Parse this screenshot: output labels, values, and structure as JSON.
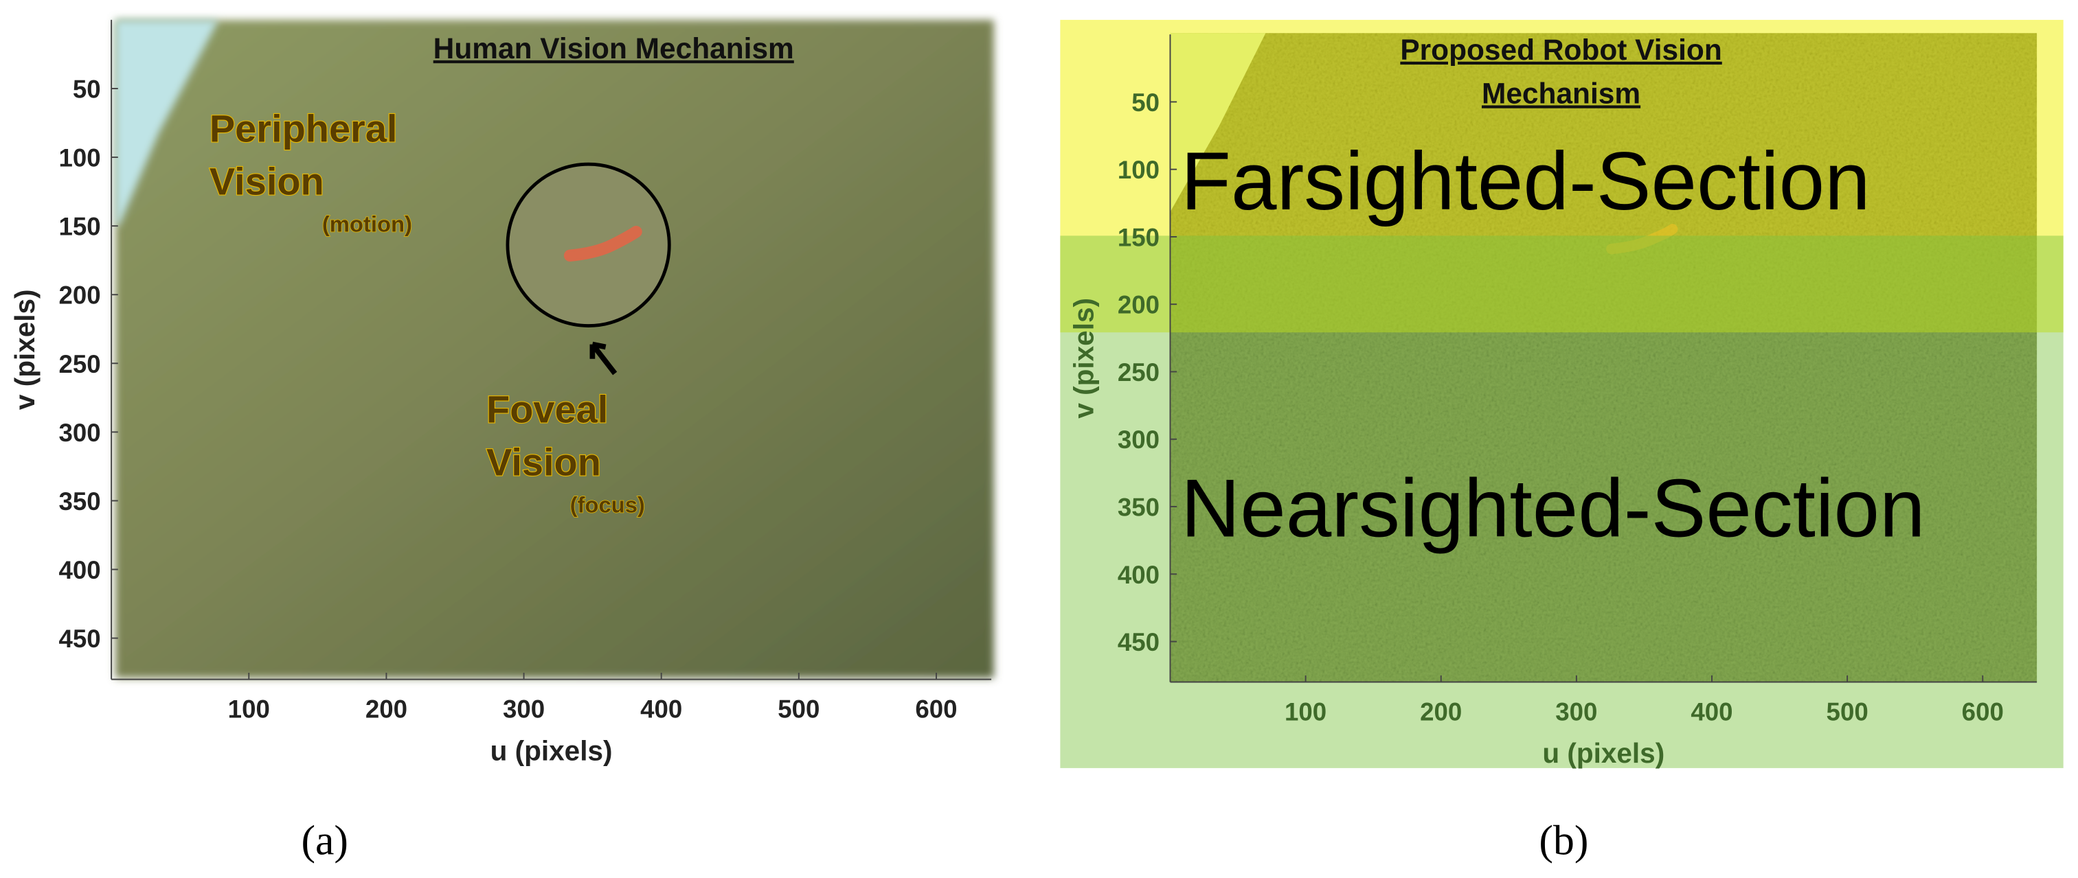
{
  "panels": [
    {
      "title": [
        "Human Vision Mechanism"
      ],
      "xlabel": "u (pixels)",
      "ylabel": "v (pixels)",
      "xlim": [
        0,
        640
      ],
      "ylim": [
        0,
        480
      ],
      "xticks": [
        100,
        200,
        300,
        400,
        500,
        600
      ],
      "yticks": [
        50,
        100,
        150,
        200,
        250,
        300,
        350,
        400,
        450
      ],
      "annotations": [
        {
          "lines": [
            "Peripheral",
            "Vision"
          ],
          "note": "(motion)"
        },
        {
          "lines": [
            "Foveal",
            "Vision"
          ],
          "note": "(focus)"
        }
      ],
      "caption": "(a)"
    },
    {
      "title": [
        "Proposed Robot Vision",
        "Mechanism"
      ],
      "xlabel": "u (pixels)",
      "ylabel": "v (pixels)",
      "xlim": [
        0,
        640
      ],
      "ylim": [
        0,
        480
      ],
      "xticks": [
        100,
        200,
        300,
        400,
        500,
        600
      ],
      "yticks": [
        50,
        100,
        150,
        200,
        250,
        300,
        350,
        400,
        450
      ],
      "sections": [
        "Farsighted-Section",
        "Nearsighted-Section"
      ],
      "caption": "(b)"
    }
  ]
}
